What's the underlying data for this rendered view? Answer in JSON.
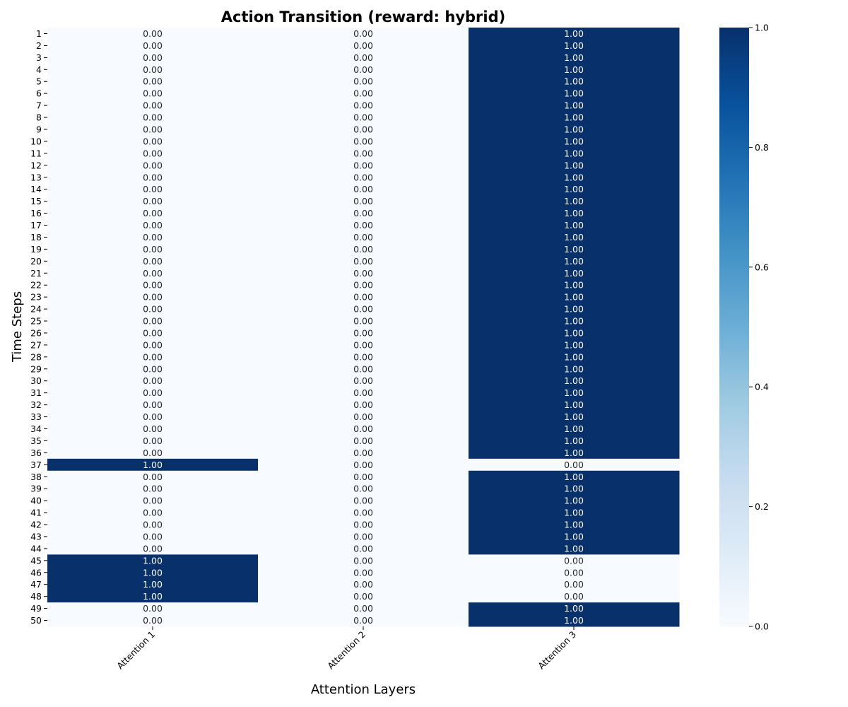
{
  "chart_data": {
    "type": "heatmap",
    "title": "Action Transition (reward: hybrid)",
    "xlabel": "Attention Layers",
    "ylabel": "Time Steps",
    "x_categories": [
      "Attention 1",
      "Attention 2",
      "Attention 3"
    ],
    "y_categories": [
      "1",
      "2",
      "3",
      "4",
      "5",
      "6",
      "7",
      "8",
      "9",
      "10",
      "11",
      "12",
      "13",
      "14",
      "15",
      "16",
      "17",
      "18",
      "19",
      "20",
      "21",
      "22",
      "23",
      "24",
      "25",
      "26",
      "27",
      "28",
      "29",
      "30",
      "31",
      "32",
      "33",
      "34",
      "35",
      "36",
      "37",
      "38",
      "39",
      "40",
      "41",
      "42",
      "43",
      "44",
      "45",
      "46",
      "47",
      "48",
      "49",
      "50"
    ],
    "values": [
      [
        0,
        0,
        1
      ],
      [
        0,
        0,
        1
      ],
      [
        0,
        0,
        1
      ],
      [
        0,
        0,
        1
      ],
      [
        0,
        0,
        1
      ],
      [
        0,
        0,
        1
      ],
      [
        0,
        0,
        1
      ],
      [
        0,
        0,
        1
      ],
      [
        0,
        0,
        1
      ],
      [
        0,
        0,
        1
      ],
      [
        0,
        0,
        1
      ],
      [
        0,
        0,
        1
      ],
      [
        0,
        0,
        1
      ],
      [
        0,
        0,
        1
      ],
      [
        0,
        0,
        1
      ],
      [
        0,
        0,
        1
      ],
      [
        0,
        0,
        1
      ],
      [
        0,
        0,
        1
      ],
      [
        0,
        0,
        1
      ],
      [
        0,
        0,
        1
      ],
      [
        0,
        0,
        1
      ],
      [
        0,
        0,
        1
      ],
      [
        0,
        0,
        1
      ],
      [
        0,
        0,
        1
      ],
      [
        0,
        0,
        1
      ],
      [
        0,
        0,
        1
      ],
      [
        0,
        0,
        1
      ],
      [
        0,
        0,
        1
      ],
      [
        0,
        0,
        1
      ],
      [
        0,
        0,
        1
      ],
      [
        0,
        0,
        1
      ],
      [
        0,
        0,
        1
      ],
      [
        0,
        0,
        1
      ],
      [
        0,
        0,
        1
      ],
      [
        0,
        0,
        1
      ],
      [
        0,
        0,
        1
      ],
      [
        1,
        0,
        0
      ],
      [
        0,
        0,
        1
      ],
      [
        0,
        0,
        1
      ],
      [
        0,
        0,
        1
      ],
      [
        0,
        0,
        1
      ],
      [
        0,
        0,
        1
      ],
      [
        0,
        0,
        1
      ],
      [
        0,
        0,
        1
      ],
      [
        1,
        0,
        0
      ],
      [
        1,
        0,
        0
      ],
      [
        1,
        0,
        0
      ],
      [
        1,
        0,
        0
      ],
      [
        0,
        0,
        1
      ],
      [
        0,
        0,
        1
      ]
    ],
    "value_format_decimals": 2,
    "colormap": "Blues",
    "color_low": "#f7fbff",
    "color_high": "#08306b",
    "colorbar_ticks": [
      0.0,
      0.2,
      0.4,
      0.6,
      0.8,
      1.0
    ],
    "colorbar_range": [
      0,
      1
    ]
  }
}
